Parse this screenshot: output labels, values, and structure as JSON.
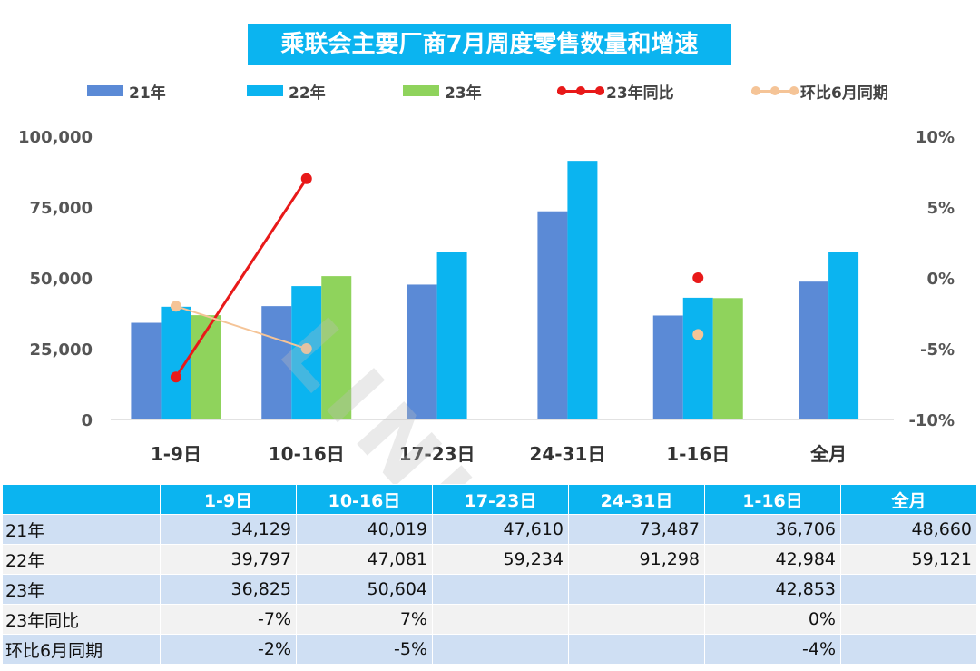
{
  "title": "乘联会主要厂商7月周度零售数量和增速",
  "watermark": "LINKER",
  "colors": {
    "y21": "#5b8ad6",
    "y22": "#0bb4f0",
    "y23": "#8fd35c",
    "yoy23": "#e81919",
    "mom": "#f5c497"
  },
  "legend": [
    {
      "label": "21年",
      "kind": "bar",
      "color_key": "y21"
    },
    {
      "label": "22年",
      "kind": "bar",
      "color_key": "y22"
    },
    {
      "label": "23年",
      "kind": "bar",
      "color_key": "y23"
    },
    {
      "label": "23年同比",
      "kind": "line",
      "color_key": "yoy23"
    },
    {
      "label": "环比6月同期",
      "kind": "line",
      "color_key": "mom"
    }
  ],
  "chart_data": {
    "type": "bar",
    "title": "乘联会主要厂商7月周度零售数量和增速",
    "categories": [
      "1-9日",
      "10-16日",
      "17-23日",
      "24-31日",
      "1-16日",
      "全月"
    ],
    "series": [
      {
        "name": "21年",
        "type": "bar",
        "axis": "left",
        "values": [
          34129,
          40019,
          47610,
          73487,
          36706,
          48660
        ]
      },
      {
        "name": "22年",
        "type": "bar",
        "axis": "left",
        "values": [
          39797,
          47081,
          59234,
          91298,
          42984,
          59121
        ]
      },
      {
        "name": "23年",
        "type": "bar",
        "axis": "left",
        "values": [
          36825,
          50604,
          null,
          null,
          42853,
          null
        ]
      },
      {
        "name": "23年同比",
        "type": "line",
        "axis": "right",
        "values": [
          -0.07,
          0.07,
          null,
          null,
          0.0,
          null
        ]
      },
      {
        "name": "环比6月同期",
        "type": "line",
        "axis": "right",
        "values": [
          -0.02,
          -0.05,
          null,
          null,
          -0.04,
          null
        ]
      }
    ],
    "y_left": {
      "min": 0,
      "max": 100000,
      "ticks": [
        "0",
        "25,000",
        "50,000",
        "75,000",
        "100,000"
      ]
    },
    "y_right": {
      "min": -0.1,
      "max": 0.1,
      "ticks": [
        "-10%",
        "-5%",
        "0%",
        "5%",
        "10%"
      ]
    },
    "grid": false,
    "legend_position": "top"
  },
  "table": {
    "header": [
      "",
      "1-9日",
      "10-16日",
      "17-23日",
      "24-31日",
      "1-16日",
      "全月"
    ],
    "rows": [
      {
        "label": "21年",
        "cells": [
          "34,129",
          "40,019",
          "47,610",
          "73,487",
          "36,706",
          "48,660"
        ]
      },
      {
        "label": "22年",
        "cells": [
          "39,797",
          "47,081",
          "59,234",
          "91,298",
          "42,984",
          "59,121"
        ]
      },
      {
        "label": "23年",
        "cells": [
          "36,825",
          "50,604",
          "",
          "",
          "42,853",
          ""
        ]
      },
      {
        "label": "23年同比",
        "cells": [
          "-7%",
          "7%",
          "",
          "",
          "0%",
          ""
        ]
      },
      {
        "label": "环比6月同期",
        "cells": [
          "-2%",
          "-5%",
          "",
          "",
          "-4%",
          ""
        ]
      }
    ]
  }
}
